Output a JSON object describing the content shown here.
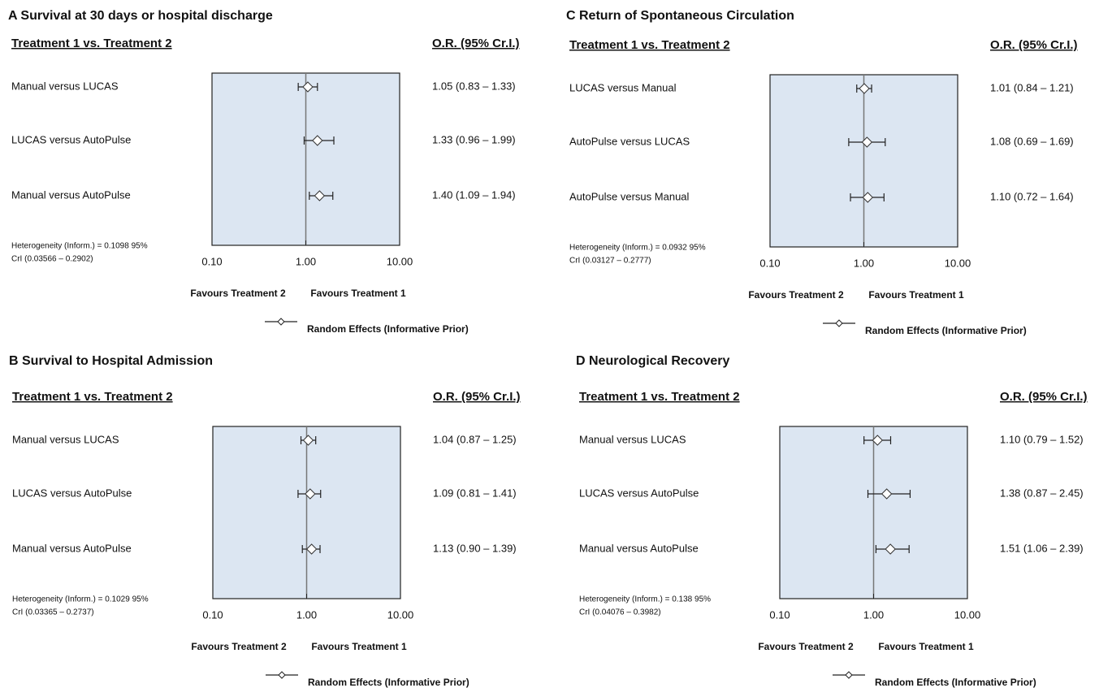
{
  "chart_data": [
    {
      "type": "forest",
      "title": "A Survival at 30 days or hospital discharge",
      "header_left": "Treatment 1 vs. Treatment 2",
      "header_right": "O.R. (95% Cr.I.)",
      "categories": [
        "Manual  versus LUCAS",
        "LUCAS  versus AutoPulse",
        "Manual  versus AutoPulse"
      ],
      "values": [
        1.05,
        1.33,
        1.4
      ],
      "lower": [
        0.83,
        0.96,
        1.09
      ],
      "upper": [
        1.33,
        1.99,
        1.94
      ],
      "value_labels": [
        "1.05 (0.83 – 1.33)",
        "1.33 (0.96 – 1.99)",
        "1.40 (1.09 – 1.94)"
      ],
      "notes": [
        "Heterogeneity (Inform.) = 0.1098 95%",
        "CrI (0.03566 – 0.2902)"
      ],
      "xlim": [
        0.1,
        10
      ],
      "xticks": [
        {
          "value": 0.1,
          "label": "0.10"
        },
        {
          "value": 1,
          "label": "1.00"
        },
        {
          "value": 10,
          "label": "10.00"
        }
      ],
      "log_x": true,
      "null_line": 1,
      "favours_left": "Favours Treatment 2",
      "favours_right": "Favours Treatment 1",
      "legend_label": "Random Effects  (Informative Prior)"
    },
    {
      "type": "forest",
      "title": "C Return of Spontaneous Circulation",
      "header_left": "Treatment 1 vs. Treatment 2",
      "header_right": "O.R. (95% Cr.I.)",
      "categories": [
        "LUCAS  versus Manual",
        "AutoPulse versus LUCAS",
        "AutoPulse versus Manual"
      ],
      "values": [
        1.01,
        1.08,
        1.1
      ],
      "lower": [
        0.84,
        0.69,
        0.72
      ],
      "upper": [
        1.21,
        1.69,
        1.64
      ],
      "value_labels": [
        "1.01 (0.84 – 1.21)",
        "1.08 (0.69 – 1.69)",
        "1.10 (0.72 – 1.64)"
      ],
      "notes": [
        "Heterogeneity (Inform.) = 0.0932 95%",
        "CrI (0.03127 – 0.2777)"
      ],
      "xlim": [
        0.1,
        10
      ],
      "xticks": [
        {
          "value": 0.1,
          "label": "0.10"
        },
        {
          "value": 1,
          "label": "1.00"
        },
        {
          "value": 10,
          "label": "10.00"
        }
      ],
      "log_x": true,
      "null_line": 1,
      "favours_left": "Favours Treatment 2",
      "favours_right": "Favours Treatment 1",
      "legend_label": "Random Effects  (Informative Prior)"
    },
    {
      "type": "forest",
      "title": "B Survival to Hospital Admission",
      "header_left": "Treatment 1 vs. Treatment 2",
      "header_right": "O.R. (95% Cr.I.)",
      "categories": [
        "Manual  versus LUCAS",
        "LUCAS  versus AutoPulse",
        "Manual  versus AutoPulse"
      ],
      "values": [
        1.04,
        1.09,
        1.13
      ],
      "lower": [
        0.87,
        0.81,
        0.9
      ],
      "upper": [
        1.25,
        1.41,
        1.39
      ],
      "value_labels": [
        "1.04 (0.87 – 1.25)",
        "1.09 (0.81 – 1.41)",
        "1.13 (0.90 – 1.39)"
      ],
      "notes": [
        "Heterogeneity (Inform.) = 0.1029 95%",
        "CrI (0.03365 – 0.2737)"
      ],
      "xlim": [
        0.1,
        10
      ],
      "xticks": [
        {
          "value": 0.1,
          "label": "0.10"
        },
        {
          "value": 1,
          "label": "1.00"
        },
        {
          "value": 10,
          "label": "10.00"
        }
      ],
      "log_x": true,
      "null_line": 1,
      "favours_left": "Favours Treatment 2",
      "favours_right": "Favours Treatment 1",
      "legend_label": "Random Effects  (Informative Prior)"
    },
    {
      "type": "forest",
      "title": "D Neurological Recovery",
      "header_left": "Treatment 1 vs. Treatment 2",
      "header_right": "O.R. (95% Cr.I.)",
      "categories": [
        "Manual  versus LUCAS",
        "LUCAS  versus AutoPulse",
        "Manual  versus AutoPulse"
      ],
      "values": [
        1.1,
        1.38,
        1.51
      ],
      "lower": [
        0.79,
        0.87,
        1.06
      ],
      "upper": [
        1.52,
        2.45,
        2.39
      ],
      "value_labels": [
        "1.10 (0.79 – 1.52)",
        "1.38 (0.87 – 2.45)",
        "1.51 (1.06 – 2.39)"
      ],
      "notes": [
        "Heterogeneity (Inform.) = 0.138 95%",
        "CrI (0.04076 – 0.3982)"
      ],
      "xlim": [
        0.1,
        10
      ],
      "xticks": [
        {
          "value": 0.1,
          "label": "0.10"
        },
        {
          "value": 1,
          "label": "1.00"
        },
        {
          "value": 10,
          "label": "10.00"
        }
      ],
      "log_x": true,
      "null_line": 1,
      "favours_left": "Favours Treatment 2",
      "favours_right": "Favours Treatment 1",
      "legend_label": "Random Effects  (Informative Prior)"
    }
  ]
}
